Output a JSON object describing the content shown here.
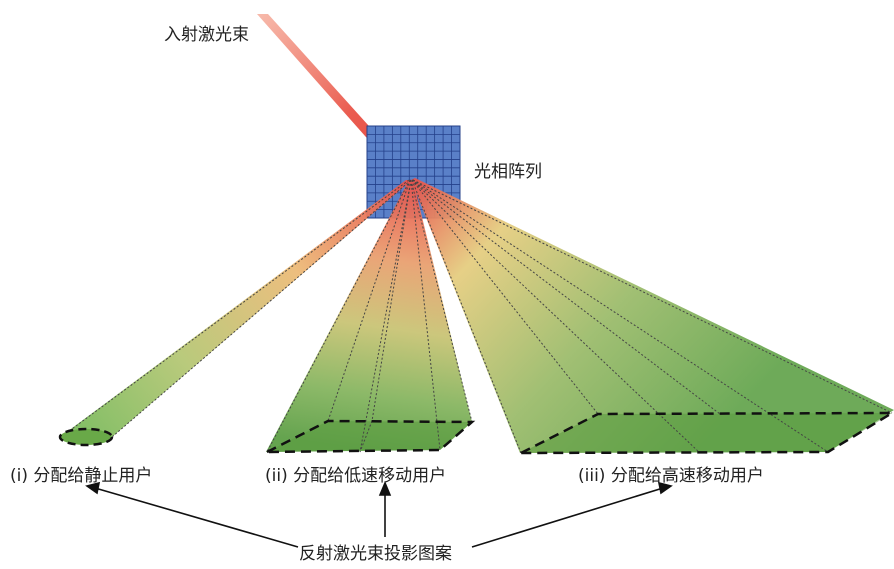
{
  "labels": {
    "incident_beam": "入射激光束",
    "phased_array": "光相阵列",
    "static_user": "(i)  分配给静止用户",
    "low_speed_user": "(ii)  分配给低速移动用户",
    "high_speed_user": "(iii)  分配给高速移动用户",
    "projection_pattern": "反射激光束投影图案"
  },
  "colors": {
    "beam_red": "#e8504a",
    "beam_yellow": "#e4d27c",
    "beam_green": "#6aaa52",
    "grid_fill": "#5a80c8",
    "grid_line": "#24408a",
    "outline": "#111111"
  }
}
